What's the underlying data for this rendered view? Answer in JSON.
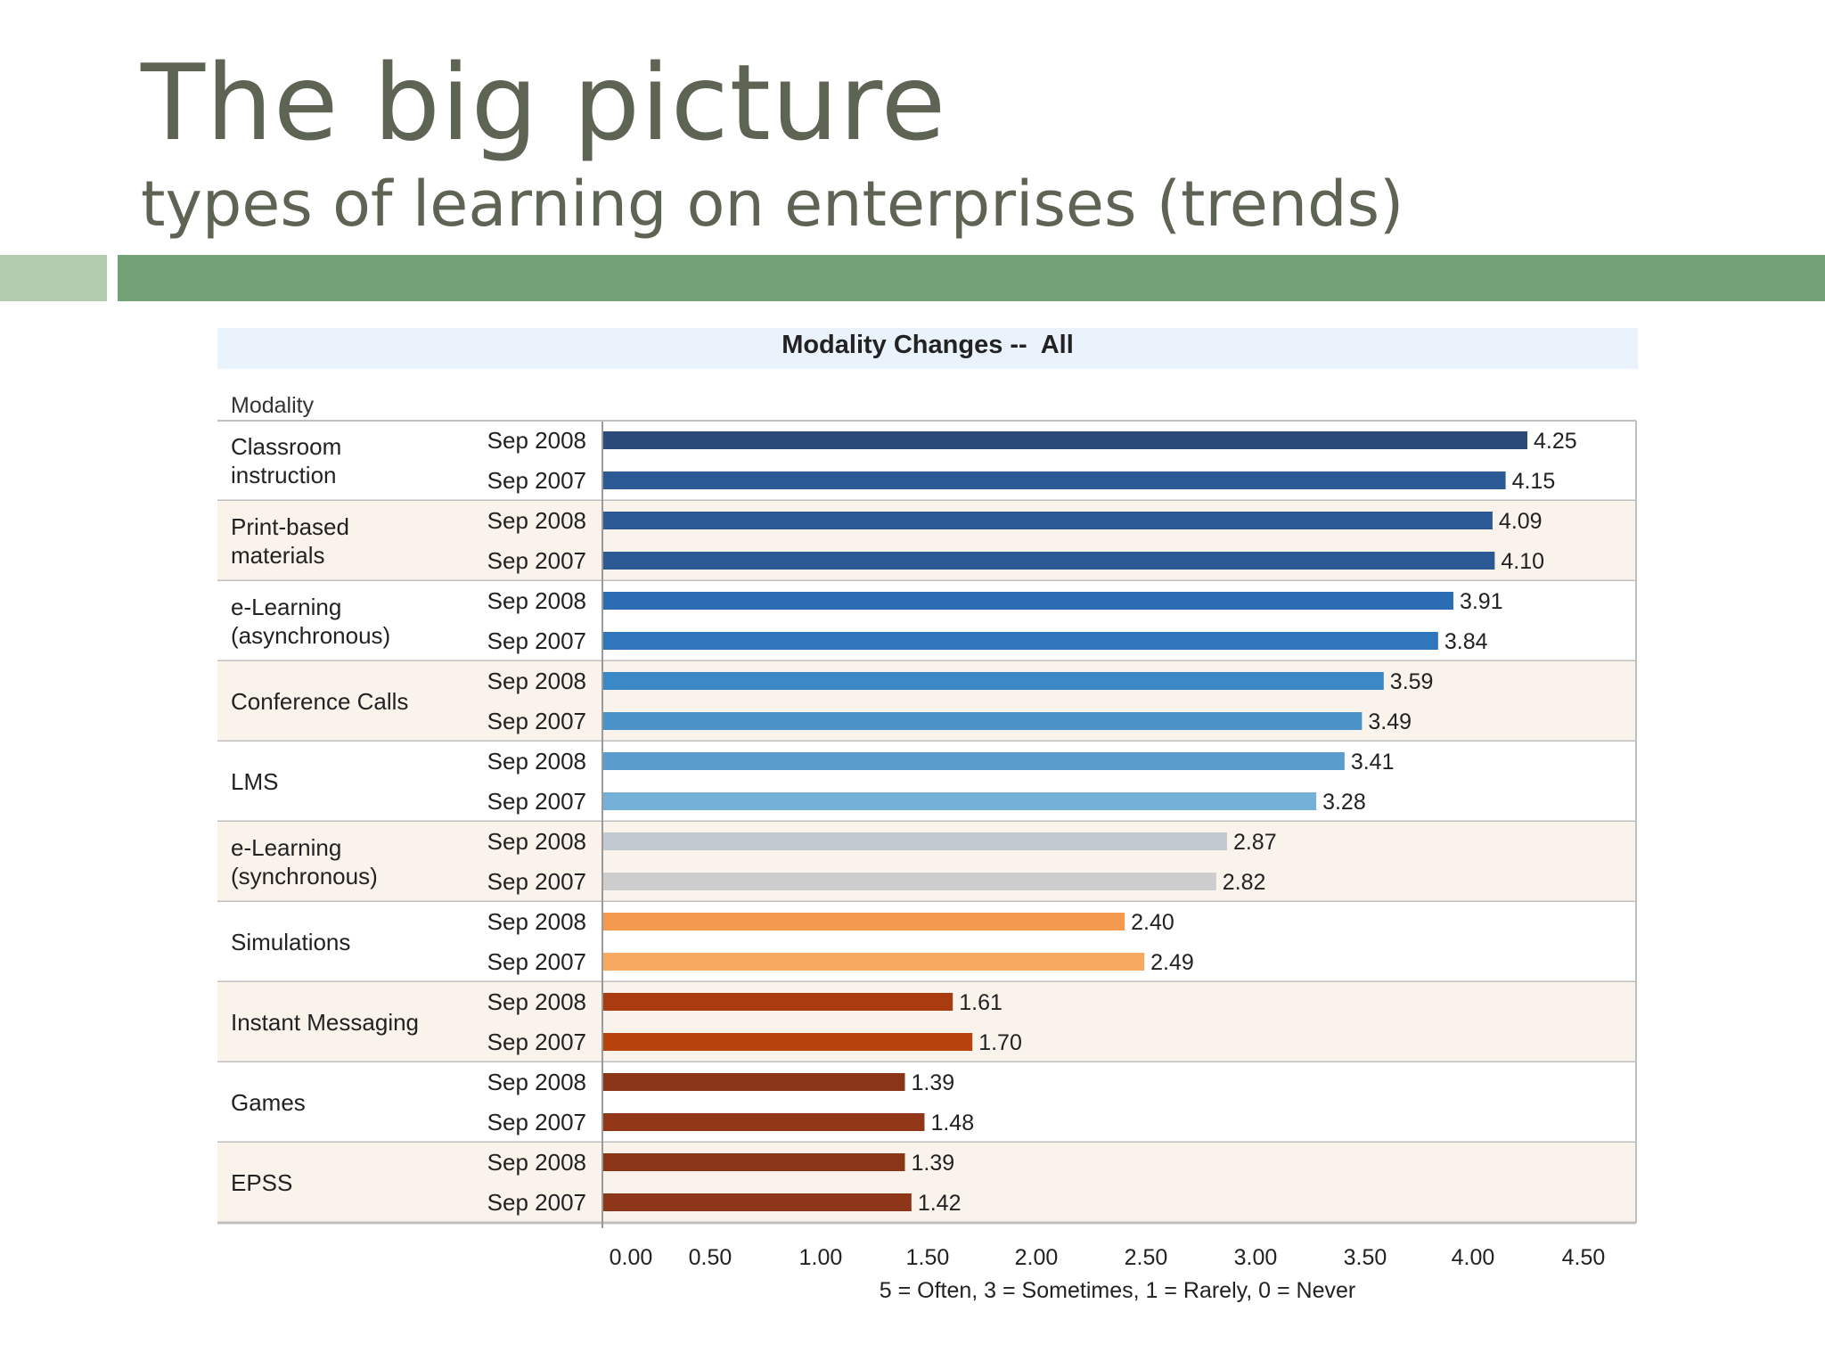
{
  "slide": {
    "title": "The big picture",
    "subtitle": "types of learning on enterprises (trends)"
  },
  "colors": {
    "title_text": "#5e6453",
    "band_light": "#b2ccae",
    "band_main": "#72a276",
    "chart_header_bg": "#eaf2fb",
    "row_alt_bg": "#faf3ec"
  },
  "chart_data": {
    "type": "bar",
    "orientation": "horizontal",
    "title": "Modality Changes --  All",
    "row_header": "Modality",
    "xlabel": "5 = Often, 3 = Sometimes, 1 = Rarely, 0 = Never",
    "xlim": [
      0,
      4.75
    ],
    "x_ticks": [
      "0.00",
      "0.50",
      "1.00",
      "1.50",
      "2.00",
      "2.50",
      "3.00",
      "3.50",
      "4.00",
      "4.50"
    ],
    "groups": [
      {
        "label": [
          "Classroom",
          "instruction"
        ],
        "bars": [
          {
            "period": "Sep 2008",
            "value": 4.25,
            "label": "4.25",
            "color": "#2b4a7a"
          },
          {
            "period": "Sep 2007",
            "value": 4.15,
            "label": "4.15",
            "color": "#2b5a94"
          }
        ]
      },
      {
        "label": [
          "Print-based",
          "materials"
        ],
        "bars": [
          {
            "period": "Sep 2008",
            "value": 4.09,
            "label": "4.09",
            "color": "#2c5a94"
          },
          {
            "period": "Sep 2007",
            "value": 4.1,
            "label": "4.10",
            "color": "#2c5a94"
          }
        ]
      },
      {
        "label": [
          "e-Learning",
          "(asynchronous)"
        ],
        "bars": [
          {
            "period": "Sep 2008",
            "value": 3.91,
            "label": "3.91",
            "color": "#2b6cb2"
          },
          {
            "period": "Sep 2007",
            "value": 3.84,
            "label": "3.84",
            "color": "#2f76bc"
          }
        ]
      },
      {
        "label": [
          "Conference Calls"
        ],
        "bars": [
          {
            "period": "Sep 2008",
            "value": 3.59,
            "label": "3.59",
            "color": "#3a88c4"
          },
          {
            "period": "Sep 2007",
            "value": 3.49,
            "label": "3.49",
            "color": "#4a92c8"
          }
        ]
      },
      {
        "label": [
          "LMS"
        ],
        "bars": [
          {
            "period": "Sep 2008",
            "value": 3.41,
            "label": "3.41",
            "color": "#5a9ccc"
          },
          {
            "period": "Sep 2007",
            "value": 3.28,
            "label": "3.28",
            "color": "#74b0d8"
          }
        ]
      },
      {
        "label": [
          "e-Learning",
          "(synchronous)"
        ],
        "bars": [
          {
            "period": "Sep 2008",
            "value": 2.87,
            "label": "2.87",
            "color": "#c3c9d1"
          },
          {
            "period": "Sep 2007",
            "value": 2.82,
            "label": "2.82",
            "color": "#cdcdcd"
          }
        ]
      },
      {
        "label": [
          "Simulations"
        ],
        "bars": [
          {
            "period": "Sep 2008",
            "value": 2.4,
            "label": "2.40",
            "color": "#f39a4e"
          },
          {
            "period": "Sep 2007",
            "value": 2.49,
            "label": "2.49",
            "color": "#f7a962"
          }
        ]
      },
      {
        "label": [
          "Instant Messaging"
        ],
        "bars": [
          {
            "period": "Sep 2008",
            "value": 1.61,
            "label": "1.61",
            "color": "#a83b10"
          },
          {
            "period": "Sep 2007",
            "value": 1.7,
            "label": "1.70",
            "color": "#b8420e"
          }
        ]
      },
      {
        "label": [
          "Games"
        ],
        "bars": [
          {
            "period": "Sep 2008",
            "value": 1.39,
            "label": "1.39",
            "color": "#8b3518"
          },
          {
            "period": "Sep 2007",
            "value": 1.48,
            "label": "1.48",
            "color": "#923818"
          }
        ]
      },
      {
        "label": [
          "EPSS"
        ],
        "bars": [
          {
            "period": "Sep 2008",
            "value": 1.39,
            "label": "1.39",
            "color": "#8b3518"
          },
          {
            "period": "Sep 2007",
            "value": 1.42,
            "label": "1.42",
            "color": "#8e3619"
          }
        ]
      }
    ]
  }
}
